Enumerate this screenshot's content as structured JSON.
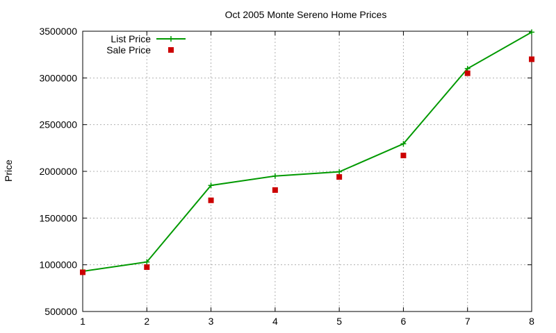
{
  "chart_data": {
    "type": "line",
    "title": "Oct 2005 Monte Sereno Home Prices",
    "xlabel": "",
    "ylabel": "Price",
    "x": [
      1,
      2,
      3,
      4,
      5,
      6,
      7,
      8
    ],
    "xlim": [
      1,
      8
    ],
    "ylim": [
      500000,
      3500000
    ],
    "xticks": [
      "1",
      "2",
      "3",
      "4",
      "5",
      "6",
      "7",
      "8"
    ],
    "yticks": [
      "500000",
      "1000000",
      "1500000",
      "2000000",
      "2500000",
      "3000000",
      "3500000"
    ],
    "grid": true,
    "legend_position": "top-left",
    "series": [
      {
        "name": "List Price",
        "style": "line-with-plus-markers",
        "color": "#009900",
        "values": [
          930000,
          1030000,
          1850000,
          1950000,
          1995000,
          2295000,
          3100000,
          3490000
        ]
      },
      {
        "name": "Sale Price",
        "style": "square-markers",
        "color": "#cc0000",
        "values": [
          920000,
          975000,
          1690000,
          1800000,
          1940000,
          2170000,
          3050000,
          3200000
        ]
      }
    ]
  }
}
